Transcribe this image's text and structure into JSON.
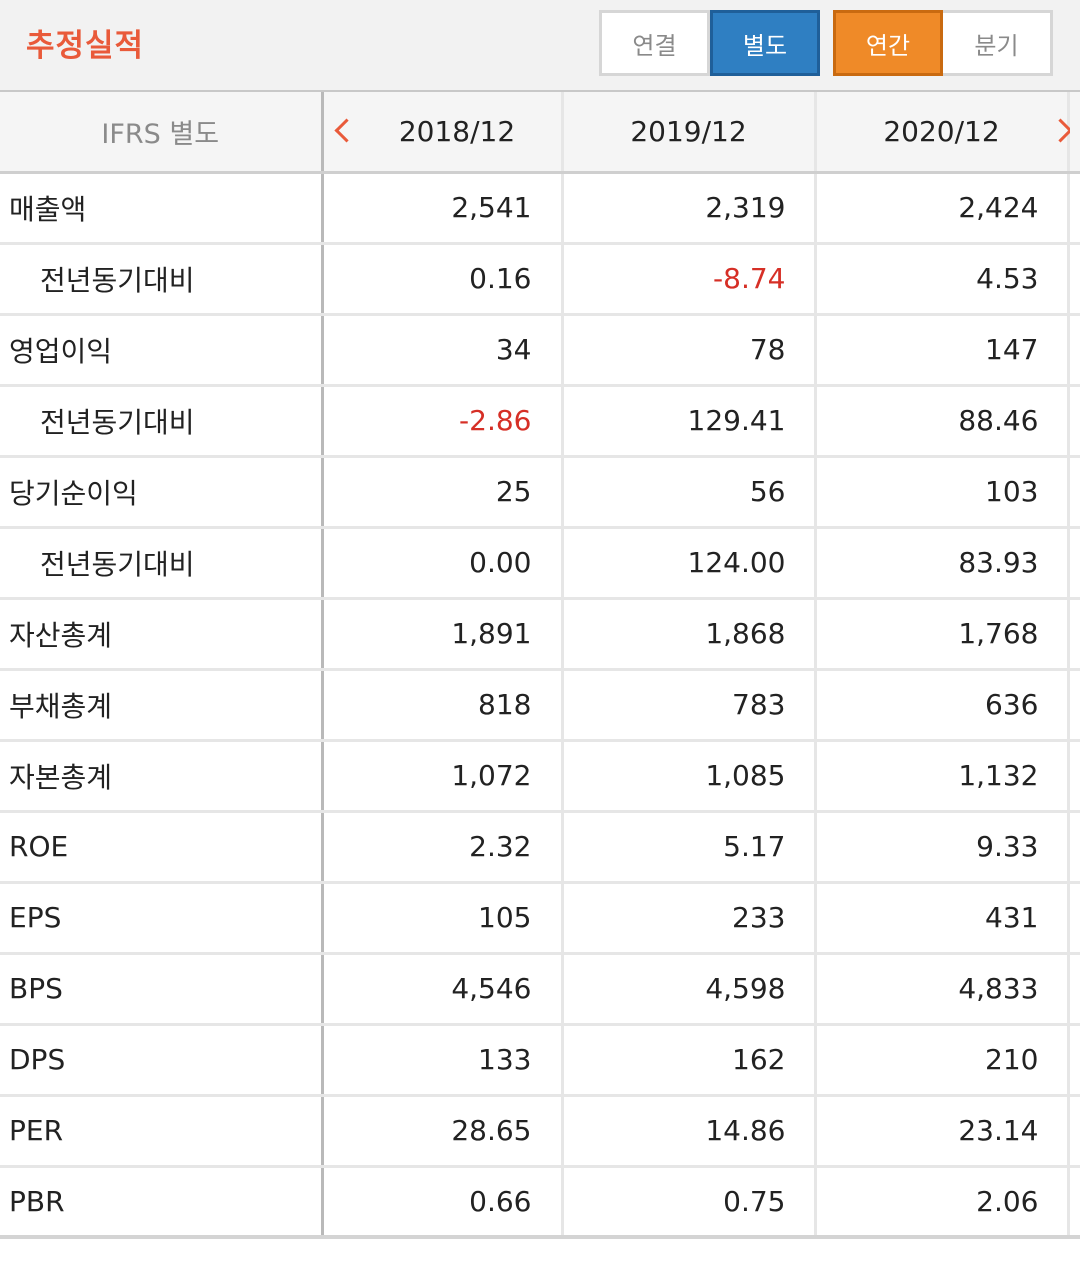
{
  "header": {
    "title": "추정실적",
    "basis_toggle": [
      {
        "label": "연결",
        "active": false
      },
      {
        "label": "별도",
        "active": true
      }
    ],
    "period_toggle": [
      {
        "label": "연간",
        "active": true
      },
      {
        "label": "분기",
        "active": false
      }
    ],
    "colors": {
      "title": "#e95a3a",
      "blue_active": "#2f7fc2",
      "orange_active": "#ef8a28",
      "negative": "#d62f26"
    }
  },
  "table": {
    "corner": "IFRS 별도",
    "prev_icon": "chevron-left-icon",
    "next_icon": "chevron-right-icon",
    "columns": [
      "2018/12",
      "2019/12",
      "2020/12"
    ],
    "rows": [
      {
        "label": "매출액",
        "sub": false,
        "values": [
          "2,541",
          "2,319",
          "2,424"
        ],
        "negative": [
          false,
          false,
          false
        ]
      },
      {
        "label": "전년동기대비",
        "sub": true,
        "values": [
          "0.16",
          "-8.74",
          "4.53"
        ],
        "negative": [
          false,
          true,
          false
        ]
      },
      {
        "label": "영업이익",
        "sub": false,
        "values": [
          "34",
          "78",
          "147"
        ],
        "negative": [
          false,
          false,
          false
        ]
      },
      {
        "label": "전년동기대비",
        "sub": true,
        "values": [
          "-2.86",
          "129.41",
          "88.46"
        ],
        "negative": [
          true,
          false,
          false
        ]
      },
      {
        "label": "당기순이익",
        "sub": false,
        "values": [
          "25",
          "56",
          "103"
        ],
        "negative": [
          false,
          false,
          false
        ]
      },
      {
        "label": "전년동기대비",
        "sub": true,
        "values": [
          "0.00",
          "124.00",
          "83.93"
        ],
        "negative": [
          false,
          false,
          false
        ]
      },
      {
        "label": "자산총계",
        "sub": false,
        "values": [
          "1,891",
          "1,868",
          "1,768"
        ],
        "negative": [
          false,
          false,
          false
        ]
      },
      {
        "label": "부채총계",
        "sub": false,
        "values": [
          "818",
          "783",
          "636"
        ],
        "negative": [
          false,
          false,
          false
        ]
      },
      {
        "label": "자본총계",
        "sub": false,
        "values": [
          "1,072",
          "1,085",
          "1,132"
        ],
        "negative": [
          false,
          false,
          false
        ]
      },
      {
        "label": "ROE",
        "sub": false,
        "values": [
          "2.32",
          "5.17",
          "9.33"
        ],
        "negative": [
          false,
          false,
          false
        ]
      },
      {
        "label": "EPS",
        "sub": false,
        "values": [
          "105",
          "233",
          "431"
        ],
        "negative": [
          false,
          false,
          false
        ]
      },
      {
        "label": "BPS",
        "sub": false,
        "values": [
          "4,546",
          "4,598",
          "4,833"
        ],
        "negative": [
          false,
          false,
          false
        ]
      },
      {
        "label": "DPS",
        "sub": false,
        "values": [
          "133",
          "162",
          "210"
        ],
        "negative": [
          false,
          false,
          false
        ]
      },
      {
        "label": "PER",
        "sub": false,
        "values": [
          "28.65",
          "14.86",
          "23.14"
        ],
        "negative": [
          false,
          false,
          false
        ]
      },
      {
        "label": "PBR",
        "sub": false,
        "values": [
          "0.66",
          "0.75",
          "2.06"
        ],
        "negative": [
          false,
          false,
          false
        ]
      }
    ]
  }
}
